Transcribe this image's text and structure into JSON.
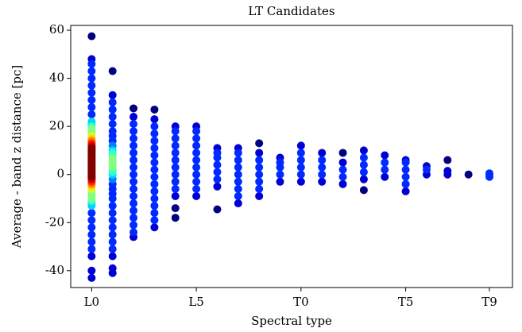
{
  "chart_data": {
    "type": "scatter",
    "title": "LT Candidates",
    "xlabel": "Spectral type",
    "ylabel": "Average - band z distance [pc]",
    "xlim": [
      -1,
      20.1
    ],
    "ylim": [
      -47,
      62
    ],
    "xticks": [
      {
        "value": 0,
        "label": "L0"
      },
      {
        "value": 5,
        "label": "L5"
      },
      {
        "value": 10,
        "label": "T0"
      },
      {
        "value": 15,
        "label": "T5"
      },
      {
        "value": 19,
        "label": "T9"
      }
    ],
    "yticks": [
      -40,
      -20,
      0,
      20,
      40,
      60
    ],
    "colormap": "jet",
    "series": [
      {
        "x": 0,
        "values": [
          -43,
          -40,
          -34,
          -31,
          -28,
          -25,
          -22,
          -19,
          -16,
          -13,
          -12,
          -11,
          -10,
          -9,
          -8,
          -7,
          -6,
          -5,
          -4,
          -3.5,
          -3,
          -2.5,
          -2,
          -1.5,
          -1,
          -0.5,
          0,
          0.5,
          1,
          1.5,
          2,
          2.5,
          3,
          3.5,
          4,
          4.5,
          5,
          5.5,
          6,
          6.5,
          7,
          7.5,
          8,
          8.5,
          9,
          9.5,
          10,
          10.5,
          11,
          11.5,
          12,
          12.5,
          13,
          13.5,
          14,
          15,
          16,
          17,
          18,
          19,
          20,
          21,
          22,
          25,
          28,
          31,
          34,
          37,
          40,
          43,
          46,
          48,
          57.5
        ]
      },
      {
        "x": 1,
        "values": [
          -41,
          -39,
          -34,
          -31,
          -28,
          -25,
          -22,
          -19,
          -16,
          -13,
          -10,
          -8,
          -6,
          -4,
          -2,
          0,
          1,
          2,
          3,
          4,
          5,
          6,
          7,
          8,
          9,
          10,
          12,
          14,
          16,
          18,
          21,
          24,
          27,
          30,
          33,
          43
        ]
      },
      {
        "x": 2,
        "values": [
          -26,
          -24,
          -21,
          -18,
          -15,
          -12,
          -9,
          -6,
          -3,
          0,
          3,
          6,
          9,
          12,
          15,
          18,
          21,
          24,
          27.5
        ]
      },
      {
        "x": 3,
        "values": [
          -22,
          -19,
          -16,
          -13,
          -10,
          -7,
          -4,
          -1,
          2,
          5,
          8,
          11,
          14,
          17,
          20,
          23,
          27
        ]
      },
      {
        "x": 4,
        "values": [
          -18,
          -14,
          -9,
          -6,
          -3,
          0,
          3,
          6,
          9,
          12,
          15,
          18,
          20
        ]
      },
      {
        "x": 5,
        "values": [
          -9,
          -6,
          -3,
          0,
          3,
          6,
          9,
          12,
          15,
          18,
          20
        ]
      },
      {
        "x": 6,
        "values": [
          -14.5,
          -5,
          -2,
          1,
          4,
          7,
          9,
          11
        ]
      },
      {
        "x": 7,
        "values": [
          -12,
          -9,
          -6,
          -3,
          0,
          3,
          6,
          9,
          11
        ]
      },
      {
        "x": 8,
        "values": [
          -9,
          -6,
          -3,
          0,
          3,
          6,
          9,
          13
        ]
      },
      {
        "x": 9,
        "values": [
          -3,
          0,
          3,
          5,
          7
        ]
      },
      {
        "x": 10,
        "values": [
          -3,
          0,
          3,
          6,
          9,
          12
        ]
      },
      {
        "x": 11,
        "values": [
          -3,
          0,
          3,
          6,
          9
        ]
      },
      {
        "x": 12,
        "values": [
          -4,
          -1,
          2,
          5,
          9
        ]
      },
      {
        "x": 13,
        "values": [
          -6.5,
          -2,
          1,
          4,
          7,
          10
        ]
      },
      {
        "x": 14,
        "values": [
          -1,
          2,
          5,
          8
        ]
      },
      {
        "x": 15,
        "values": [
          -7,
          -4,
          -1,
          2,
          5,
          6
        ]
      },
      {
        "x": 16,
        "values": [
          0,
          2,
          3.5
        ]
      },
      {
        "x": 17,
        "values": [
          0,
          1.5,
          6
        ]
      },
      {
        "x": 18,
        "values": [
          0
        ]
      },
      {
        "x": 19,
        "values": [
          -1,
          0,
          0.5
        ]
      }
    ]
  }
}
